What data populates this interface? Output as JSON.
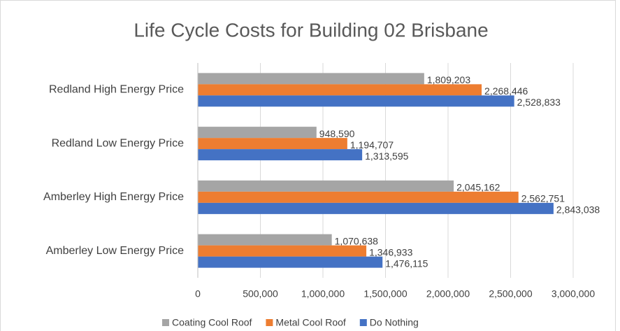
{
  "chart_data": {
    "type": "hbar",
    "title": "Life Cycle Costs for Building 02 Brisbane",
    "categories": [
      "Redland High Energy Price",
      "Redland Low Energy Price",
      "Amberley High Energy Price",
      "Amberley Low Energy Price"
    ],
    "series": [
      {
        "name": "Coating Cool Roof",
        "color": "#a5a5a5",
        "values": [
          1809203,
          948590,
          2045162,
          1070638
        ],
        "value_labels": [
          "1,809,203",
          "948,590",
          "2,045,162",
          "1,070,638"
        ]
      },
      {
        "name": "Metal Cool Roof",
        "color": "#ed7d31",
        "values": [
          2268446,
          1194707,
          2562751,
          1346933
        ],
        "value_labels": [
          "2,268,446",
          "1,194,707",
          "2,562,751",
          "1,346,933"
        ]
      },
      {
        "name": "Do Nothing",
        "color": "#4472c4",
        "values": [
          2528833,
          1313595,
          2843038,
          1476115
        ],
        "value_labels": [
          "2,528,833",
          "1,313,595",
          "2,843,038",
          "1,476,115"
        ]
      }
    ],
    "xlim": [
      0,
      3000000
    ],
    "xticks": [
      0,
      {
        "value": 500000,
        "label": "500,000"
      },
      {
        "value": 1000000,
        "label": "1,000,000"
      },
      {
        "value": 1500000,
        "label": "1,500,000"
      },
      {
        "value": 2000000,
        "label": "2,000,000"
      },
      {
        "value": 2500000,
        "label": "2,500,000"
      },
      {
        "value": 3000000,
        "label": "3,000,000"
      }
    ],
    "grid": true,
    "legend": "bottom"
  }
}
